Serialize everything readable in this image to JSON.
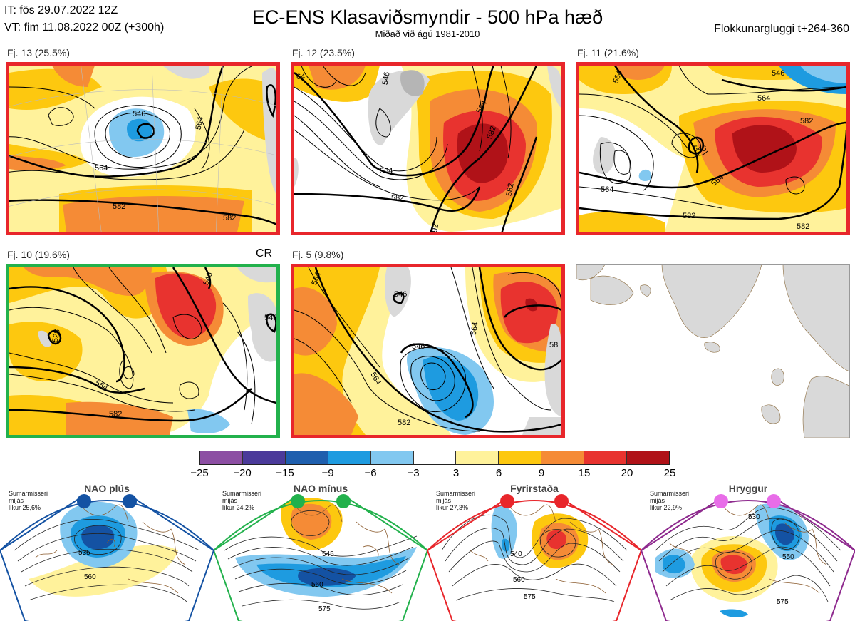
{
  "header": {
    "it": "IT: fös 29.07.2022 12Z",
    "vt": "VT: fim 11.08.2022 00Z  (+300h)",
    "title": "EC-ENS Klasaviðsmyndir - 500 hPa hæð",
    "subtitle": "Miðað við ágú 1981-2010",
    "window": "Flokkunargluggi t+264-360"
  },
  "panels": [
    {
      "label": "Fj. 13 (25.5%)",
      "frame": "red",
      "contours": [
        "546",
        "564",
        "564",
        "582",
        "582"
      ]
    },
    {
      "label": "Fj. 12 (23.5%)",
      "frame": "red",
      "contours": [
        "564",
        "582",
        "582",
        "582",
        "564",
        "546",
        "64",
        "92"
      ]
    },
    {
      "label": "Fj. 11 (21.6%)",
      "frame": "red",
      "contours": [
        "546",
        "564",
        "582",
        "546",
        "564",
        "564",
        "582",
        "582"
      ]
    },
    {
      "label": "Fj. 10 (19.6%)",
      "frame": "green",
      "tag": "CR",
      "contours": [
        "564",
        "582",
        "546",
        "528",
        "546"
      ]
    },
    {
      "label": "Fj. 5 (9.8%)",
      "frame": "red",
      "contours": [
        "546",
        "564",
        "582",
        "564",
        "564",
        "546",
        "58"
      ]
    }
  ],
  "colorbar": {
    "colors": [
      "#8c4ea3",
      "#4b3a9a",
      "#1f5fae",
      "#1e9be0",
      "#82c8f0",
      "#ffffff",
      "#fff29b",
      "#fdc80f",
      "#f58b36",
      "#e8332f",
      "#b01218"
    ],
    "ticks": [
      "−25",
      "−20",
      "−15",
      "−9",
      "−6",
      "−3",
      "3",
      "6",
      "9",
      "15",
      "20",
      "25"
    ]
  },
  "regimes": [
    {
      "name": "NAO plús",
      "line1": "Sumarmisseri",
      "line2": "mijás",
      "line3": "líkur 25,6%",
      "color": "#1452a3",
      "labels": [
        "535",
        "560"
      ]
    },
    {
      "name": "NAO mínus",
      "line1": "Sumarmisseri",
      "line2": "mijás",
      "line3": "líkur 24,2%",
      "color": "#22b14c",
      "labels": [
        "545",
        "560",
        "575"
      ]
    },
    {
      "name": "Fyrirstaða",
      "line1": "Sumarmisseri",
      "line2": "mijás",
      "line3": "líkur 27,3%",
      "color": "#e8262b",
      "labels": [
        "540",
        "560",
        "575"
      ]
    },
    {
      "name": "Hryggur",
      "line1": "Sumarmisseri",
      "line2": "mijás",
      "line3": "líkur 22,9%",
      "color": "#e86de8",
      "labels": [
        "530",
        "550",
        "575"
      ]
    }
  ]
}
